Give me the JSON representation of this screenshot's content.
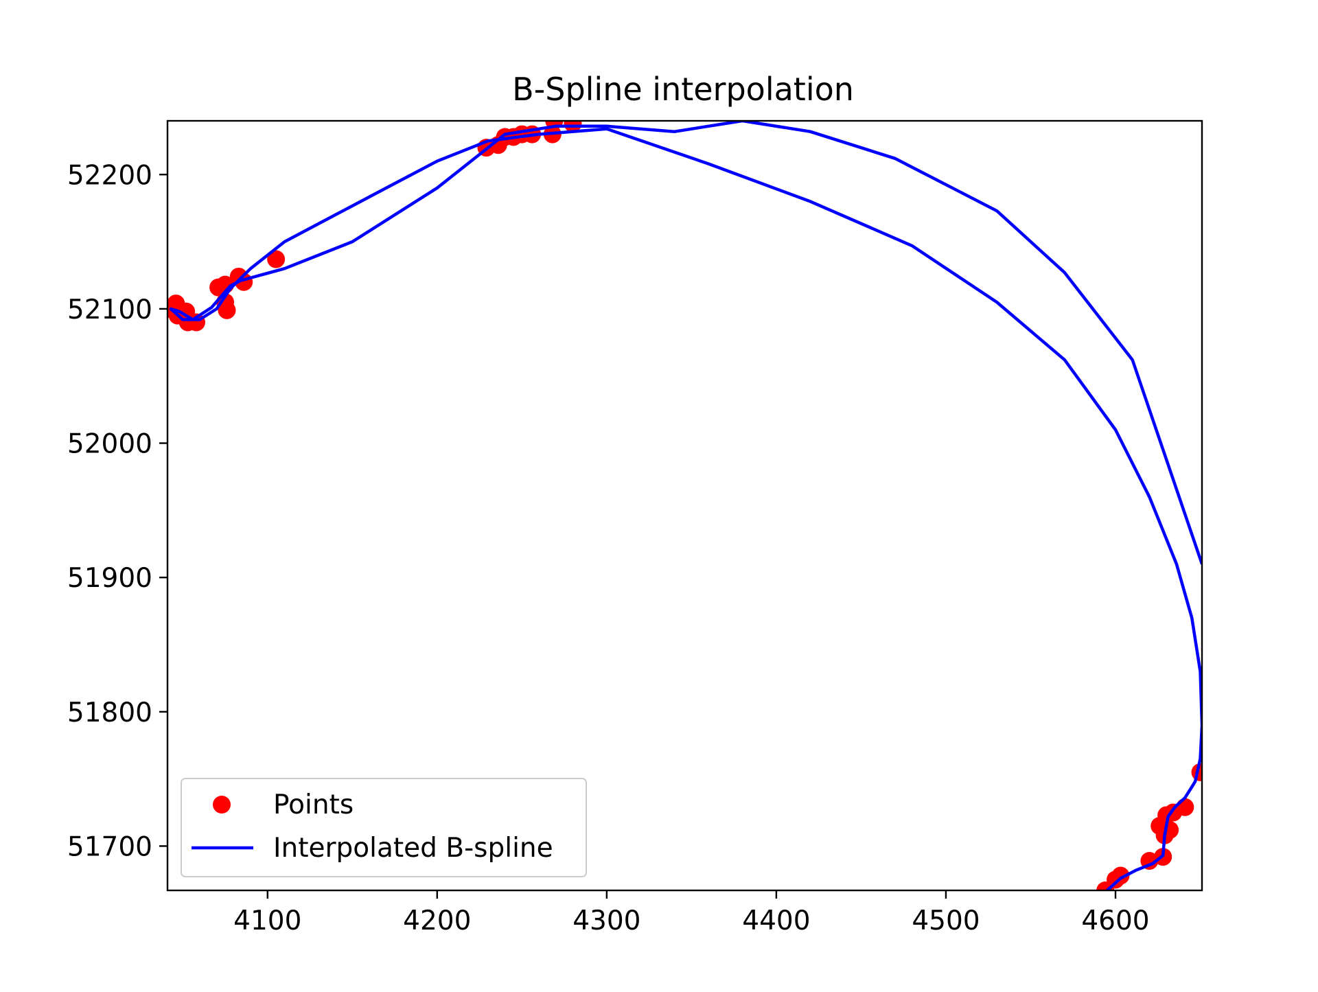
{
  "chart_data": {
    "type": "scatter",
    "title": "B-Spline interpolation",
    "xlabel": "",
    "ylabel": "",
    "xlim": [
      4041,
      4651
    ],
    "ylim": [
      51667,
      52240
    ],
    "x_ticks": [
      4100,
      4200,
      4300,
      4400,
      4500,
      4600
    ],
    "y_ticks": [
      51700,
      51800,
      51900,
      52000,
      52100,
      52200
    ],
    "x_tick_labels": [
      "4100",
      "4200",
      "4300",
      "4400",
      "4500",
      "4600"
    ],
    "y_tick_labels": [
      "51700",
      "51800",
      "51900",
      "52000",
      "52100",
      "52200"
    ],
    "grid": false,
    "legend_position": "lower-left",
    "series": [
      {
        "name": "Points",
        "kind": "scatter",
        "color": "#ff0000",
        "x": [
          4042,
          4046,
          4047,
          4052,
          4053,
          4058,
          4071,
          4075,
          4075,
          4076,
          4083,
          4086,
          4105,
          4229,
          4236,
          4240,
          4245,
          4250,
          4256,
          4268,
          4269,
          4280,
          4594,
          4600,
          4603,
          4620,
          4626,
          4628,
          4629,
          4630,
          4632,
          4634,
          4641,
          4650
        ],
        "y": [
          52100,
          52104,
          52095,
          52098,
          52090,
          52090,
          52116,
          52118,
          52105,
          52099,
          52124,
          52120,
          52137,
          52220,
          52222,
          52228,
          52228,
          52230,
          52230,
          52230,
          52240,
          52238,
          51667,
          51675,
          51678,
          51689,
          51715,
          51692,
          51708,
          51723,
          51712,
          51725,
          51729,
          51755
        ]
      },
      {
        "name": "Interpolated B-spline",
        "kind": "line",
        "color": "#0000ff",
        "x": [
          4595,
          4603,
          4612,
          4622,
          4628,
          4629,
          4631,
          4635,
          4641,
          4647,
          4650,
          4651,
          4650,
          4645,
          4636,
          4620,
          4600,
          4570,
          4530,
          4480,
          4420,
          4360,
          4300,
          4260,
          4230,
          4200,
          4170,
          4140,
          4110,
          4090,
          4078,
          4070,
          4060,
          4050,
          4043,
          4048,
          4056,
          4067,
          4078,
          4084,
          4110,
          4150,
          4200,
          4240,
          4270,
          4300,
          4340,
          4380,
          4420,
          4470,
          4530,
          4570,
          4610,
          4651
        ],
        "y": [
          51667,
          51676,
          51682,
          51687,
          51693,
          51708,
          51722,
          51729,
          51736,
          51748,
          51765,
          51790,
          51830,
          51870,
          51910,
          51960,
          52010,
          52062,
          52105,
          52147,
          52180,
          52208,
          52234,
          52230,
          52225,
          52210,
          52190,
          52170,
          52150,
          52130,
          52115,
          52100,
          52092,
          52092,
          52100,
          52098,
          52092,
          52101,
          52117,
          52121,
          52130,
          52150,
          52190,
          52230,
          52236,
          52236,
          52232,
          52240,
          52232,
          52212,
          52173,
          52127,
          52062,
          51910
        ]
      }
    ]
  }
}
